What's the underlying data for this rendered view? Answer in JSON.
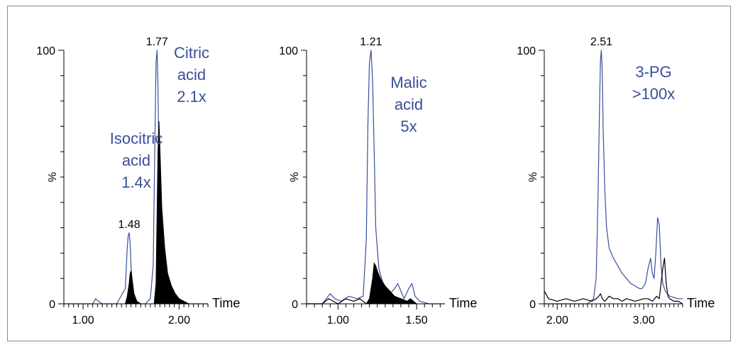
{
  "colors": {
    "axis": "#000000",
    "blue": "#3a4f9a",
    "fill": "#000000"
  },
  "chart_data": [
    {
      "type": "line",
      "panel": "citric",
      "xlabel": "Time",
      "ylabel": "%",
      "xlim": [
        0.8,
        2.3
      ],
      "ylim": [
        0,
        100
      ],
      "xticks": [
        1.0,
        2.0
      ],
      "xtick_labels": [
        "1.00",
        "2.00"
      ],
      "yticks": [
        0,
        100
      ],
      "ytick_labels": [
        "0",
        "100"
      ],
      "annotations": [
        {
          "text": "Citric",
          "color": "blue"
        },
        {
          "text": "acid",
          "color": "blue"
        },
        {
          "text": "2.1x",
          "color": "blue"
        },
        {
          "text": "Isocitric",
          "color": "blue"
        },
        {
          "text": "acid",
          "color": "blue"
        },
        {
          "text": "1.4x",
          "color": "blue"
        }
      ],
      "peak_labels": [
        {
          "text": "1.77",
          "x": 1.77,
          "y": 100
        },
        {
          "text": "1.48",
          "x": 1.48,
          "y": 28
        }
      ],
      "series": [
        {
          "style": "line",
          "color": "blue",
          "x": [
            0.8,
            0.95,
            1.1,
            1.13,
            1.16,
            1.2,
            1.35,
            1.44,
            1.46,
            1.47,
            1.48,
            1.49,
            1.5,
            1.52,
            1.55,
            1.6,
            1.65,
            1.7,
            1.73,
            1.75,
            1.76,
            1.77,
            1.78,
            1.79,
            1.81,
            1.84,
            1.88,
            1.92,
            1.97,
            2.05,
            2.15,
            2.3
          ],
          "y": [
            0,
            0,
            0,
            2,
            1,
            0,
            0,
            6,
            22,
            27,
            28,
            24,
            14,
            5,
            1,
            0,
            0,
            2,
            15,
            70,
            95,
            100,
            86,
            55,
            22,
            10,
            5,
            2,
            1,
            0,
            0,
            0
          ]
        },
        {
          "style": "filled",
          "color": "fill",
          "x": [
            1.44,
            1.46,
            1.48,
            1.49,
            1.5,
            1.51,
            1.53,
            1.56,
            1.6,
            1.74,
            1.76,
            1.78,
            1.79,
            1.8,
            1.82,
            1.85,
            1.88,
            1.92,
            1.96,
            2.0,
            2.05,
            2.1,
            2.3
          ],
          "y": [
            0,
            3,
            8,
            12,
            13,
            10,
            4,
            1,
            0,
            0,
            8,
            60,
            72,
            62,
            38,
            22,
            12,
            7,
            4,
            2,
            1,
            0,
            0
          ]
        }
      ]
    },
    {
      "type": "line",
      "panel": "malic",
      "xlabel": "Time",
      "ylabel": "%",
      "xlim": [
        0.8,
        1.68
      ],
      "ylim": [
        0,
        100
      ],
      "xticks": [
        1.0,
        1.5
      ],
      "xtick_labels": [
        "1.00",
        "1.50"
      ],
      "yticks": [
        0,
        100
      ],
      "ytick_labels": [
        "0",
        "100"
      ],
      "annotations": [
        {
          "text": "Malic",
          "color": "blue"
        },
        {
          "text": "acid",
          "color": "blue"
        },
        {
          "text": "5x",
          "color": "blue"
        }
      ],
      "peak_labels": [
        {
          "text": "1.21",
          "x": 1.21,
          "y": 100
        }
      ],
      "series": [
        {
          "style": "line",
          "color": "blue",
          "x": [
            0.8,
            0.9,
            0.95,
            0.98,
            1.02,
            1.07,
            1.12,
            1.16,
            1.18,
            1.19,
            1.2,
            1.21,
            1.22,
            1.23,
            1.24,
            1.26,
            1.29,
            1.33,
            1.36,
            1.38,
            1.4,
            1.42,
            1.45,
            1.47,
            1.49,
            1.52,
            1.58,
            1.68
          ],
          "y": [
            0,
            0,
            4,
            2,
            1,
            3,
            2,
            3,
            25,
            70,
            95,
            100,
            88,
            60,
            30,
            14,
            7,
            4,
            6,
            8,
            5,
            2,
            6,
            8,
            3,
            1,
            0,
            0
          ]
        },
        {
          "style": "filled",
          "color": "fill",
          "x": [
            1.18,
            1.2,
            1.22,
            1.23,
            1.24,
            1.25,
            1.27,
            1.3,
            1.33,
            1.36,
            1.4,
            1.44,
            1.46,
            1.48,
            1.5,
            1.55,
            1.68
          ],
          "y": [
            0,
            2,
            10,
            16,
            15,
            13,
            10,
            7,
            5,
            3,
            2,
            1,
            2,
            1,
            0,
            0,
            0
          ]
        },
        {
          "style": "line",
          "color": "fill",
          "x": [
            0.8,
            0.9,
            0.94,
            0.97,
            1.0,
            1.05,
            1.1,
            1.14,
            1.18
          ],
          "y": [
            0,
            0,
            2,
            1,
            0,
            2,
            1,
            2,
            0
          ]
        }
      ]
    },
    {
      "type": "line",
      "panel": "3pg",
      "xlabel": "Time",
      "ylabel": "%",
      "xlim": [
        1.85,
        3.45
      ],
      "ylim": [
        0,
        100
      ],
      "xticks": [
        2.0,
        3.0
      ],
      "xtick_labels": [
        "2.00",
        "3.00"
      ],
      "yticks": [
        0,
        100
      ],
      "ytick_labels": [
        "0",
        "100"
      ],
      "annotations": [
        {
          "text": "3-PG",
          "color": "blue"
        },
        {
          "text": ">100x",
          "color": "blue"
        }
      ],
      "peak_labels": [
        {
          "text": "2.51",
          "x": 2.51,
          "y": 100
        }
      ],
      "series": [
        {
          "style": "line",
          "color": "blue",
          "x": [
            1.85,
            2.0,
            2.2,
            2.35,
            2.42,
            2.45,
            2.47,
            2.49,
            2.5,
            2.51,
            2.52,
            2.53,
            2.55,
            2.57,
            2.6,
            2.65,
            2.7,
            2.75,
            2.8,
            2.85,
            2.9,
            2.95,
            2.98,
            3.02,
            3.05,
            3.08,
            3.1,
            3.12,
            3.14,
            3.16,
            3.18,
            3.2,
            3.22,
            3.25,
            3.3,
            3.4,
            3.45
          ],
          "y": [
            0,
            0,
            0,
            0,
            2,
            10,
            40,
            80,
            96,
            100,
            92,
            70,
            45,
            30,
            22,
            18,
            15,
            12,
            10,
            8,
            7,
            6,
            6,
            8,
            14,
            18,
            12,
            10,
            20,
            34,
            31,
            15,
            8,
            5,
            3,
            2,
            2
          ]
        },
        {
          "style": "line",
          "color": "fill",
          "x": [
            1.85,
            1.9,
            2.0,
            2.1,
            2.2,
            2.3,
            2.4,
            2.45,
            2.48,
            2.5,
            2.52,
            2.55,
            2.6,
            2.65,
            2.7,
            2.75,
            2.8,
            2.9,
            3.0,
            3.05,
            3.1,
            3.15,
            3.18,
            3.2,
            3.22,
            3.24,
            3.26,
            3.28,
            3.3,
            3.35,
            3.4,
            3.45
          ],
          "y": [
            5,
            2,
            1,
            2,
            1,
            2,
            1,
            2,
            3,
            4,
            2,
            1,
            3,
            2,
            2,
            1,
            2,
            1,
            2,
            2,
            1,
            3,
            2,
            8,
            14,
            18,
            8,
            3,
            2,
            1,
            1,
            0
          ]
        }
      ]
    }
  ]
}
